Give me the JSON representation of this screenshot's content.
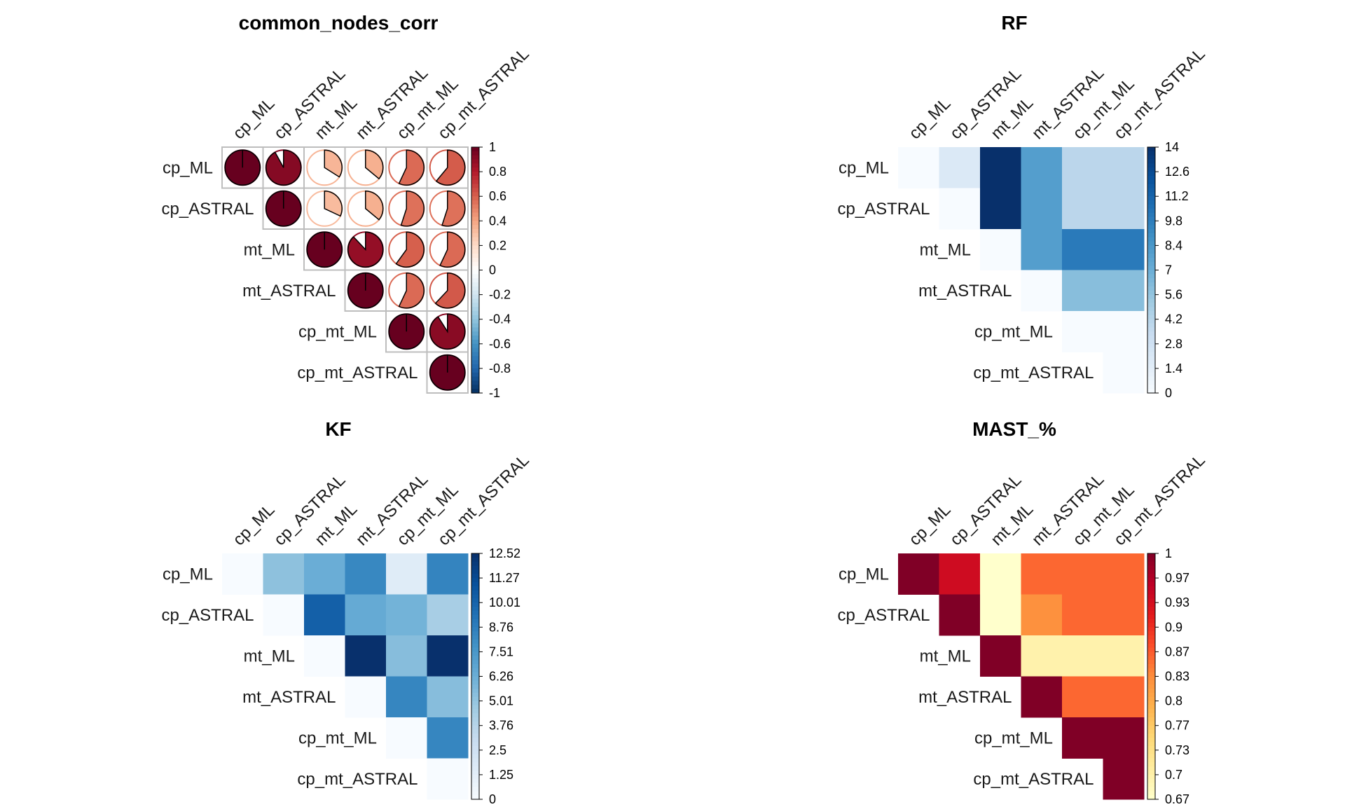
{
  "chart_data": [
    {
      "type": "heatmap",
      "style": "pie",
      "title": "common_nodes_corr",
      "variables": [
        "cp_ML",
        "cp_ASTRAL",
        "mt_ML",
        "mt_ASTRAL",
        "cp_mt_ML",
        "cp_mt_ASTRAL"
      ],
      "matrix": [
        [
          1.0,
          0.92,
          0.34,
          0.36,
          0.57,
          0.61
        ],
        [
          null,
          1.0,
          0.32,
          0.36,
          0.55,
          0.55
        ],
        [
          null,
          null,
          1.0,
          0.88,
          0.6,
          0.57
        ],
        [
          null,
          null,
          null,
          1.0,
          0.57,
          0.62
        ],
        [
          null,
          null,
          null,
          null,
          1.0,
          0.91
        ],
        [
          null,
          null,
          null,
          null,
          null,
          1.0
        ]
      ],
      "colorbar_ticks": [
        "1",
        "0.8",
        "0.6",
        "0.4",
        "0.2",
        "0",
        "-0.2",
        "-0.4",
        "-0.6",
        "-0.8",
        "-1"
      ],
      "colorbar_range": [
        -1,
        1
      ],
      "colormap": "RdBu_diverging"
    },
    {
      "type": "heatmap",
      "title": "RF",
      "variables": [
        "cp_ML",
        "cp_ASTRAL",
        "mt_ML",
        "mt_ASTRAL",
        "cp_mt_ML",
        "cp_mt_ASTRAL"
      ],
      "matrix": [
        [
          0,
          2,
          14,
          8,
          4,
          4
        ],
        [
          null,
          0,
          14,
          8,
          4,
          4
        ],
        [
          null,
          null,
          0,
          8,
          10,
          10
        ],
        [
          null,
          null,
          null,
          0,
          6,
          6
        ],
        [
          null,
          null,
          null,
          null,
          0,
          0
        ],
        [
          null,
          null,
          null,
          null,
          null,
          0
        ]
      ],
      "colorbar_ticks": [
        "14",
        "12.6",
        "11.2",
        "9.8",
        "8.4",
        "7",
        "5.6",
        "4.2",
        "2.8",
        "1.4",
        "0"
      ],
      "colorbar_range": [
        0,
        14
      ],
      "colormap": "Blues"
    },
    {
      "type": "heatmap",
      "title": "KF",
      "variables": [
        "cp_ML",
        "cp_ASTRAL",
        "mt_ML",
        "mt_ASTRAL",
        "cp_mt_ML",
        "cp_mt_ASTRAL"
      ],
      "matrix": [
        [
          0,
          5.2,
          6.3,
          8.3,
          1.5,
          8.5
        ],
        [
          null,
          0,
          10.2,
          6.5,
          6.0,
          4.3
        ],
        [
          null,
          null,
          0,
          12.5,
          5.4,
          12.5
        ],
        [
          null,
          null,
          null,
          0,
          8.4,
          5.4
        ],
        [
          null,
          null,
          null,
          null,
          0,
          8.4
        ],
        [
          null,
          null,
          null,
          null,
          null,
          0
        ]
      ],
      "colorbar_ticks": [
        "12.52",
        "11.27",
        "10.01",
        "8.76",
        "7.51",
        "6.26",
        "5.01",
        "3.76",
        "2.5",
        "1.25",
        "0"
      ],
      "colorbar_range": [
        0,
        12.52
      ],
      "colormap": "Blues"
    },
    {
      "type": "heatmap",
      "title": "MAST_%",
      "variables": [
        "cp_ML",
        "cp_ASTRAL",
        "mt_ML",
        "mt_ASTRAL",
        "cp_mt_ML",
        "cp_mt_ASTRAL"
      ],
      "matrix": [
        [
          1,
          0.94,
          0.67,
          0.86,
          0.86,
          0.86
        ],
        [
          null,
          1,
          0.67,
          0.83,
          0.86,
          0.86
        ],
        [
          null,
          null,
          1,
          0.7,
          0.7,
          0.7
        ],
        [
          null,
          null,
          null,
          1,
          0.86,
          0.86
        ],
        [
          null,
          null,
          null,
          null,
          1,
          1
        ],
        [
          null,
          null,
          null,
          null,
          null,
          1
        ]
      ],
      "colorbar_ticks": [
        "1",
        "0.97",
        "0.93",
        "0.9",
        "0.87",
        "0.83",
        "0.8",
        "0.77",
        "0.73",
        "0.7",
        "0.67"
      ],
      "colorbar_range": [
        0.67,
        1
      ],
      "colormap": "YlOrRd"
    }
  ]
}
